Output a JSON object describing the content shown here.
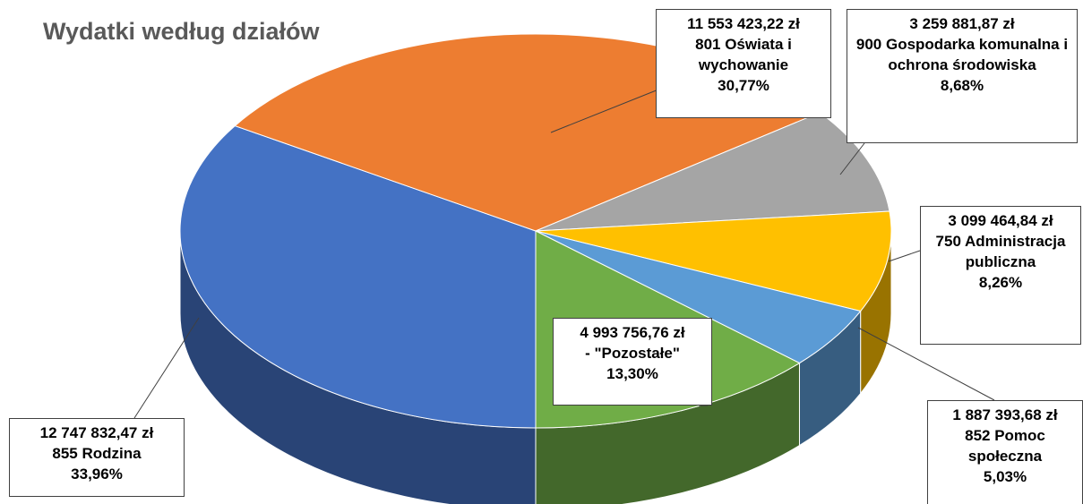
{
  "chart_data": {
    "type": "pie3d",
    "title": "Wydatki według działów",
    "categories": [
      "855 Rodzina",
      "801 Oświata i wychowanie",
      "900 Gospodarka komunalna i ochrona środowiska",
      "750 Administracja publiczna",
      "852 Pomoc społeczna",
      "- \"Pozostałe\""
    ],
    "amounts": [
      "12 747 832,47 zł",
      "11 553 423,22 zł",
      "3 259 881,87 zł",
      "3 099 464,84 zł",
      "1 887 393,68 zł",
      "4 993 756,76 zł"
    ],
    "values": [
      33.96,
      30.77,
      8.68,
      8.26,
      5.03,
      13.3
    ],
    "value_labels": [
      "33,96%",
      "30,77%",
      "8,68%",
      "8,26%",
      "5,03%",
      "13,30%"
    ],
    "colors": [
      "#4472c4",
      "#ed7d31",
      "#a5a5a5",
      "#ffc000",
      "#5b9bd5",
      "#70ad47"
    ]
  }
}
